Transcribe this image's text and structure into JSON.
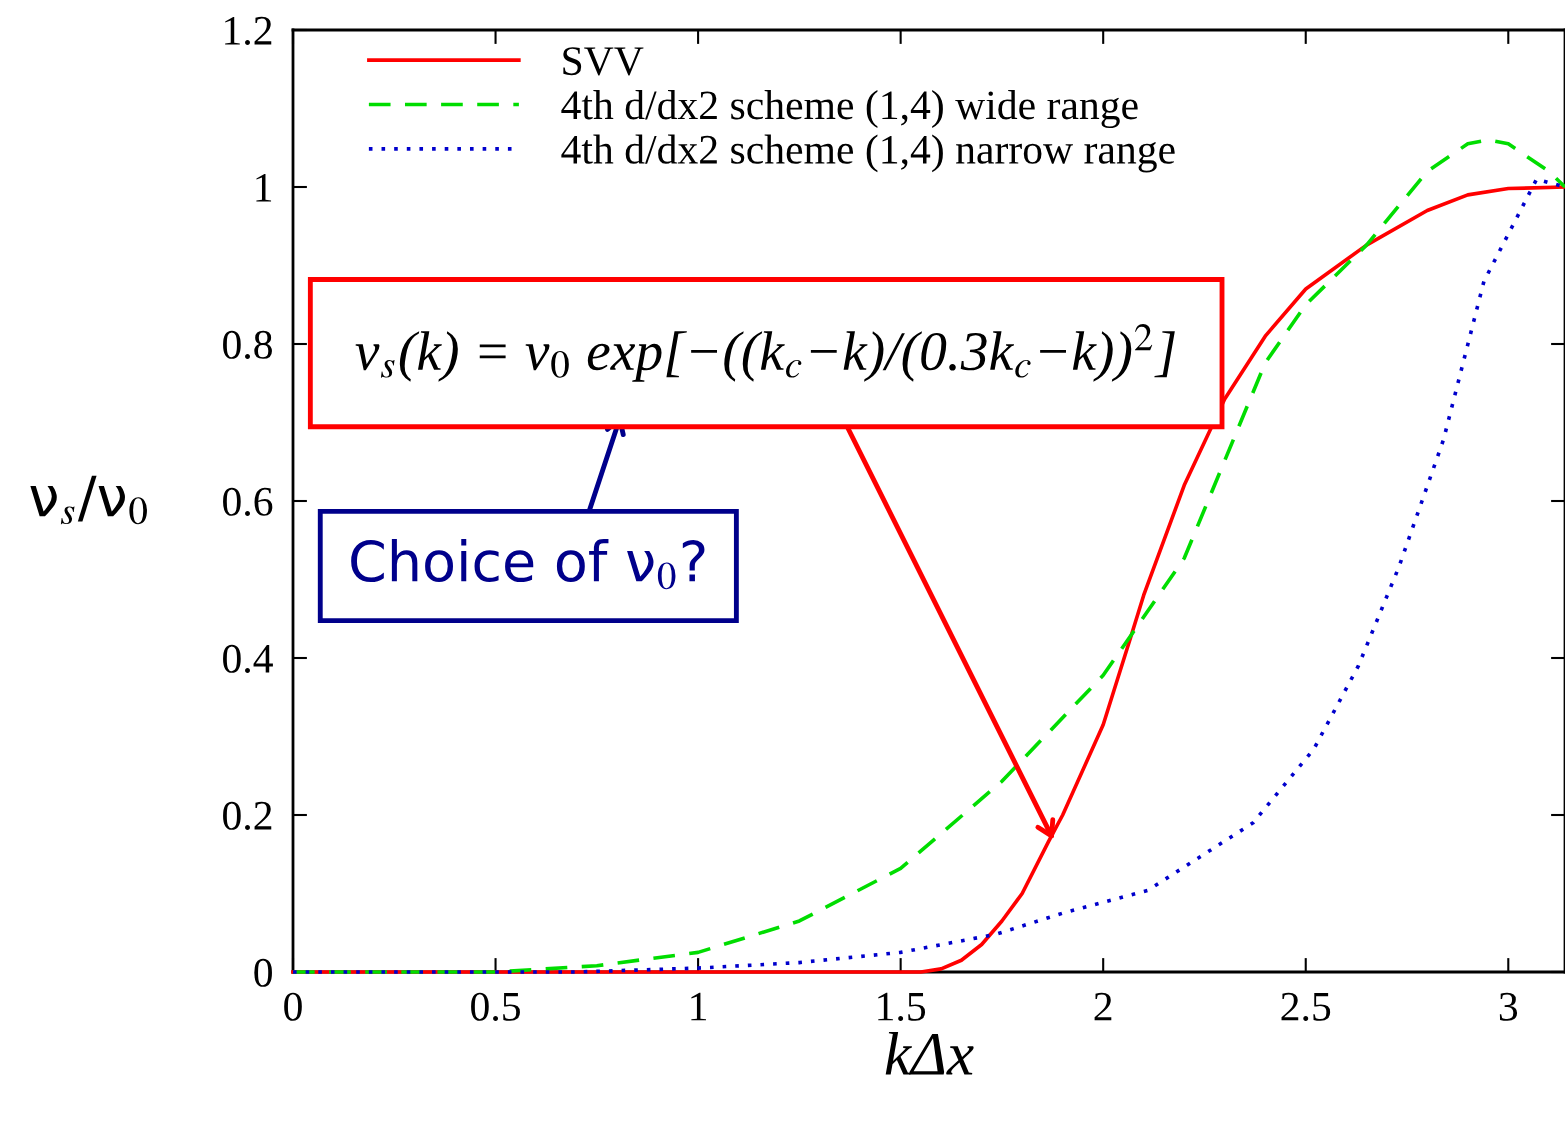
{
  "chart_data": {
    "type": "line",
    "xlabel": "kΔx",
    "ylabel": "ν$_{s}$/ν$_{0}$",
    "xlim": [
      0,
      3.14
    ],
    "ylim": [
      0,
      1.2
    ],
    "xticks": [
      0,
      0.5,
      1,
      1.5,
      2,
      2.5,
      3
    ],
    "yticks": [
      0,
      0.2,
      0.4,
      0.6,
      0.8,
      1,
      1.2
    ],
    "grid": false,
    "legend": "top left",
    "series": [
      {
        "name": "SVV",
        "color": "#ff0000",
        "line_style": "solid",
        "x": [
          0,
          0.5,
          1.0,
          1.5,
          1.55,
          1.6,
          1.65,
          1.7,
          1.75,
          1.8,
          1.865,
          1.9,
          2.0,
          2.07,
          2.1,
          2.2,
          2.3,
          2.4,
          2.5,
          2.65,
          2.8,
          2.9,
          3.0,
          3.14
        ],
        "values": [
          0,
          0,
          0,
          0,
          0,
          0.004,
          0.015,
          0.035,
          0.065,
          0.1,
          0.166,
          0.2,
          0.315,
          0.43,
          0.48,
          0.62,
          0.73,
          0.81,
          0.87,
          0.926,
          0.97,
          0.99,
          0.998,
          1.0
        ]
      },
      {
        "name": "4th d/dx2 scheme (1,4) wide range",
        "color": "#00dd00",
        "line_style": "dashed",
        "x": [
          0,
          0.5,
          0.75,
          1.0,
          1.25,
          1.5,
          1.75,
          2.0,
          2.07,
          2.2,
          2.4,
          2.5,
          2.65,
          2.8,
          2.9,
          2.95,
          3.0,
          3.1,
          3.14
        ],
        "values": [
          0,
          0,
          0.008,
          0.025,
          0.065,
          0.132,
          0.243,
          0.378,
          0.43,
          0.527,
          0.776,
          0.85,
          0.926,
          1.02,
          1.055,
          1.06,
          1.055,
          1.02,
          1.0
        ]
      },
      {
        "name": "4th d/dx2 scheme (1,4) narrow range",
        "color": "#0000cc",
        "line_style": "dotted",
        "x": [
          0,
          0.7,
          1.0,
          1.25,
          1.5,
          1.735,
          1.9,
          2.11,
          2.37,
          2.52,
          2.63,
          2.73,
          2.84,
          2.94,
          3.07,
          3.14
        ],
        "values": [
          0,
          0,
          0.005,
          0.012,
          0.025,
          0.048,
          0.075,
          0.104,
          0.19,
          0.284,
          0.39,
          0.516,
          0.678,
          0.88,
          1.01,
          1.0
        ]
      }
    ],
    "annotations": [
      "v$_{s}$(k) = v$_{0}$ exp[−((k$_{c}$−k)/(0.3k$_{c}$−k))$^{2}$]",
      "Choice of ν$_{0}$?"
    ]
  }
}
